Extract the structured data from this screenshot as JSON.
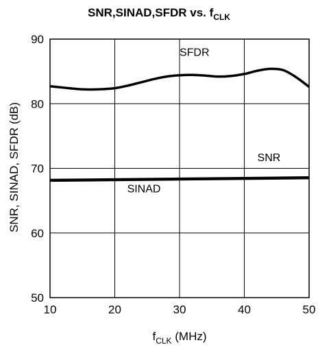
{
  "chart_data": {
    "type": "line",
    "title": {
      "main": "SNR,SINAD,SFDR vs. f",
      "sub": "CLK"
    },
    "xlabel": {
      "main": "f",
      "sub": "CLK",
      "rest": " (MHz)"
    },
    "ylabel": "SNR, SINAD, SFDR (dB)",
    "xlim": [
      10,
      50
    ],
    "ylim": [
      50,
      90
    ],
    "xticks": [
      10,
      20,
      30,
      40,
      50
    ],
    "yticks": [
      50,
      60,
      70,
      80,
      90
    ],
    "grid": true,
    "series": [
      {
        "name": "SFDR",
        "x": [
          10,
          12,
          14,
          16,
          18,
          20,
          22,
          24,
          26,
          28,
          30,
          32,
          34,
          36,
          38,
          40,
          42,
          44,
          46,
          48,
          50
        ],
        "y": [
          82.7,
          82.5,
          82.3,
          82.2,
          82.25,
          82.4,
          82.8,
          83.3,
          83.8,
          84.2,
          84.4,
          84.45,
          84.35,
          84.2,
          84.3,
          84.6,
          85.1,
          85.4,
          85.2,
          84.1,
          82.6
        ]
      },
      {
        "name": "SNR",
        "x": [
          10,
          50
        ],
        "y": [
          68.3,
          68.7
        ]
      },
      {
        "name": "SINAD",
        "x": [
          10,
          50
        ],
        "y": [
          68.1,
          68.5
        ]
      }
    ]
  }
}
